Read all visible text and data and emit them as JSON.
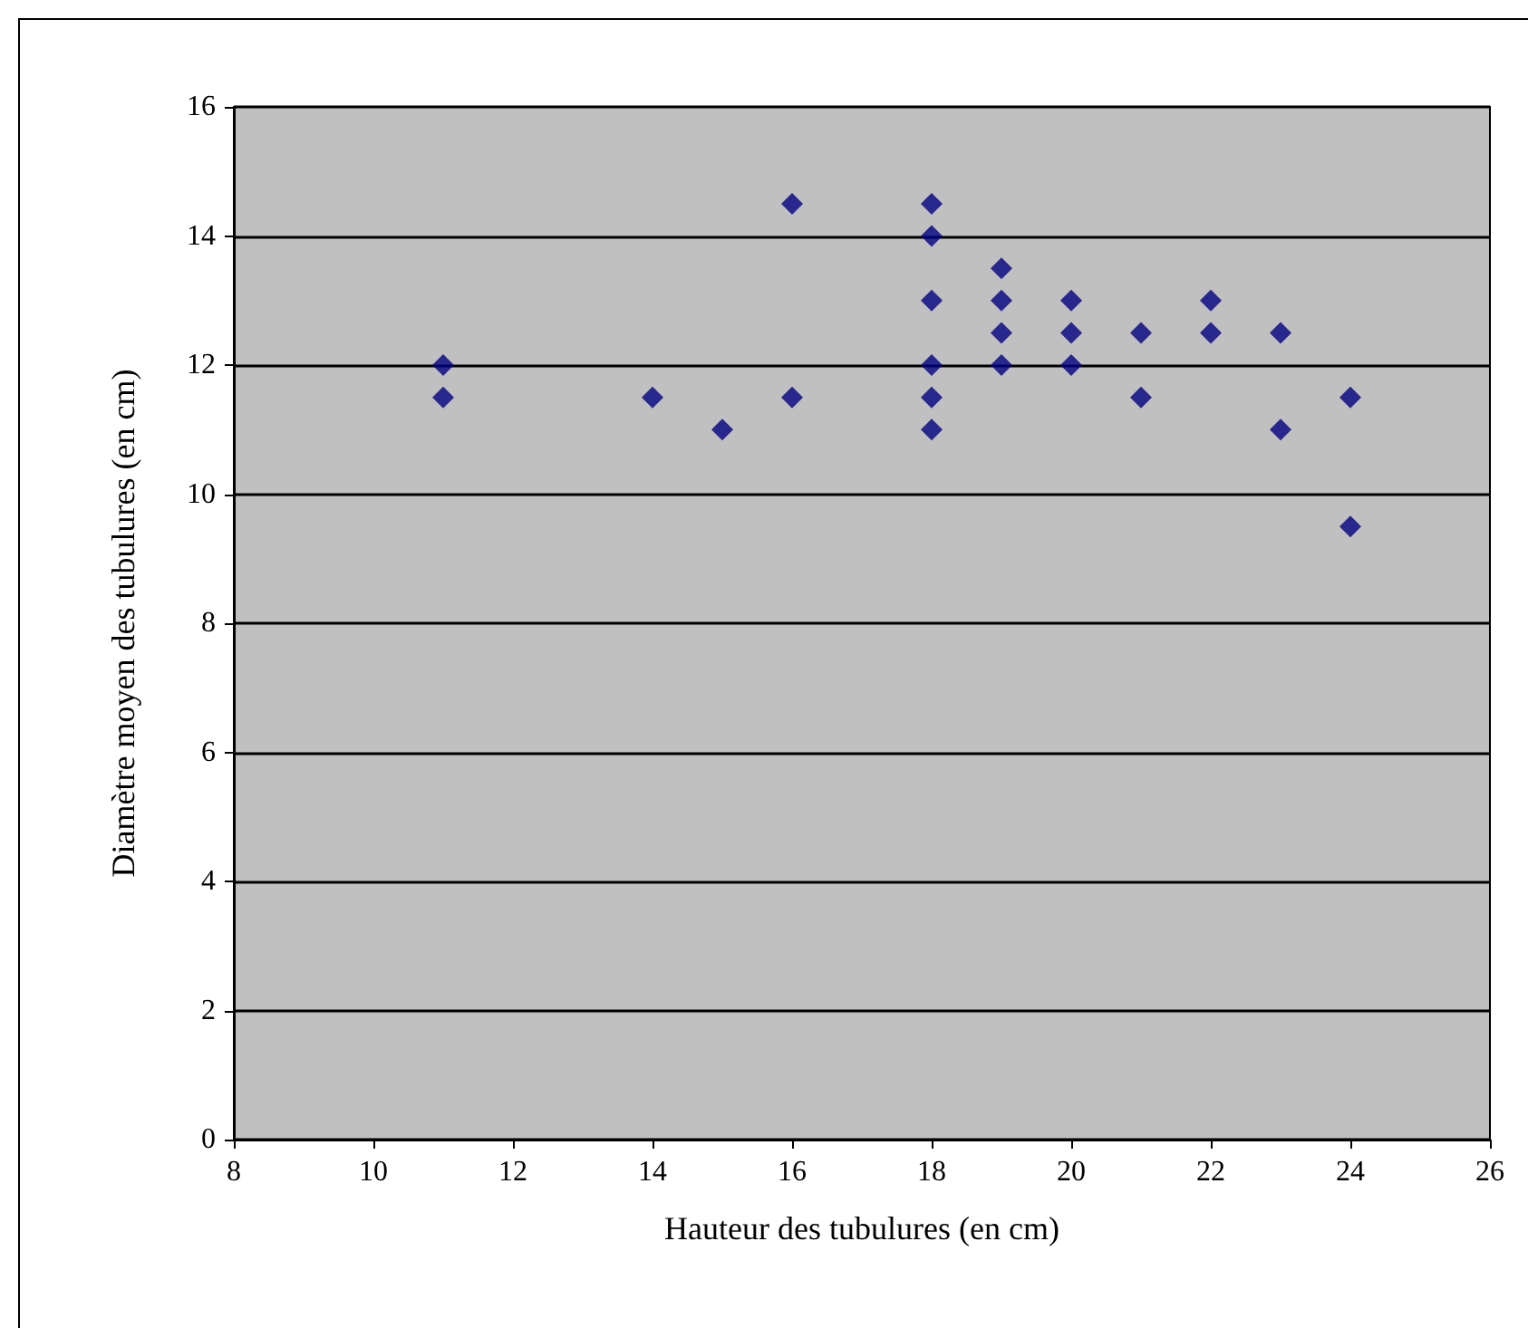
{
  "chart_data": {
    "type": "scatter",
    "xlabel": "Hauteur des tubulures (en cm)",
    "ylabel": "Diamètre moyen des tubulures (en cm)",
    "x": [
      11,
      11,
      14,
      15,
      16,
      16,
      18,
      18,
      18,
      18,
      18,
      18,
      19,
      19,
      19,
      19,
      20,
      20,
      20,
      21,
      21,
      22,
      22,
      23,
      23,
      24,
      24
    ],
    "values": [
      12,
      11.5,
      11.5,
      11,
      14.5,
      11.5,
      14.5,
      14,
      13,
      12,
      11.5,
      11,
      13.5,
      13,
      12.5,
      12,
      13,
      12.5,
      12,
      12.5,
      11.5,
      13,
      12.5,
      12.5,
      11,
      11.5,
      9.5
    ],
    "color": "#000080",
    "marker": "diamond",
    "xlim": [
      8,
      26
    ],
    "xticks": [
      8,
      10,
      12,
      14,
      16,
      18,
      20,
      22,
      24,
      26
    ],
    "ylim": [
      0,
      16
    ],
    "yticks": [
      0,
      2,
      4,
      6,
      8,
      10,
      12,
      14,
      16
    ],
    "grid": "y"
  }
}
